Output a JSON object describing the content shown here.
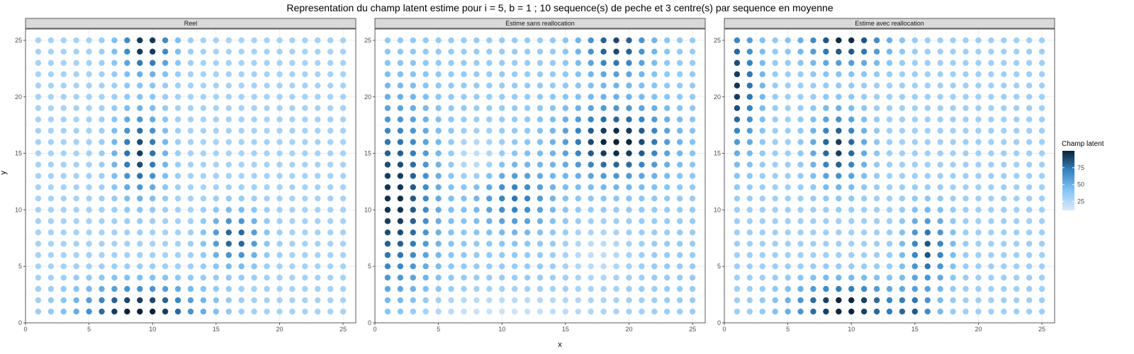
{
  "chart_data": {
    "type": "scatter",
    "title": "Representation du champ latent estime pour i = 5, b = 1 ; 10 sequence(s) de peche et 3 centre(s) par sequence en moyenne",
    "xlabel": "x",
    "ylabel": "y",
    "xlim": [
      0,
      26
    ],
    "ylim": [
      0,
      26
    ],
    "x_ticks": [
      0,
      5,
      10,
      15,
      20,
      25
    ],
    "y_ticks": [
      0,
      5,
      10,
      15,
      20,
      25
    ],
    "grid": "on",
    "grid_x": [
      1,
      25
    ],
    "grid_y": [
      1,
      25
    ],
    "legend": {
      "title": "Champ latent",
      "position": "right",
      "ticks": [
        25,
        50,
        75
      ],
      "range": [
        12,
        100
      ],
      "colors": [
        "#dbe8f7",
        "#85c4f5",
        "#3784c0",
        "#0b2238"
      ]
    },
    "panels": [
      {
        "strip": "Reel",
        "hotspots": [
          {
            "x": 9,
            "y": 1,
            "sx": 3.2,
            "sy": 1.6,
            "amp": 75
          },
          {
            "x": 9,
            "y": 15,
            "sx": 1.3,
            "sy": 2.6,
            "amp": 62
          },
          {
            "x": 9.5,
            "y": 24.5,
            "sx": 1.4,
            "sy": 1.6,
            "amp": 70
          },
          {
            "x": 16.5,
            "y": 7.5,
            "sx": 1.4,
            "sy": 1.6,
            "amp": 55
          }
        ],
        "base": 30
      },
      {
        "strip": "Estime sans reallocation",
        "hotspots": [
          {
            "x": 1.5,
            "y": 11,
            "sx": 2.2,
            "sy": 5.5,
            "amp": 62
          },
          {
            "x": 19,
            "y": 16,
            "sx": 2.8,
            "sy": 2.2,
            "amp": 68
          },
          {
            "x": 19,
            "y": 24.5,
            "sx": 1.8,
            "sy": 1.8,
            "amp": 55
          },
          {
            "x": 11,
            "y": 11,
            "sx": 2,
            "sy": 2,
            "amp": 40
          },
          {
            "x": 10,
            "y": 1,
            "sx": 6,
            "sy": 1.2,
            "amp": -18
          },
          {
            "x": 8,
            "y": 14.5,
            "sx": 1.3,
            "sy": 1.5,
            "amp": -18
          },
          {
            "x": 17.5,
            "y": 6,
            "sx": 1.8,
            "sy": 1.8,
            "amp": -15
          }
        ],
        "base": 35
      },
      {
        "strip": "Estime avec reallocation",
        "hotspots": [
          {
            "x": 9.5,
            "y": 1.5,
            "sx": 2.8,
            "sy": 1.4,
            "amp": 72
          },
          {
            "x": 1,
            "y": 21,
            "sx": 1.2,
            "sy": 4,
            "amp": 62
          },
          {
            "x": 9,
            "y": 15.5,
            "sx": 1.4,
            "sy": 2.2,
            "amp": 62
          },
          {
            "x": 9.5,
            "y": 25,
            "sx": 2.2,
            "sy": 1.5,
            "amp": 66
          },
          {
            "x": 16,
            "y": 6.5,
            "sx": 1.2,
            "sy": 2.2,
            "amp": 54
          },
          {
            "x": 15,
            "y": 1,
            "sx": 1.2,
            "sy": 1.2,
            "amp": 40
          }
        ],
        "base": 32
      }
    ]
  }
}
